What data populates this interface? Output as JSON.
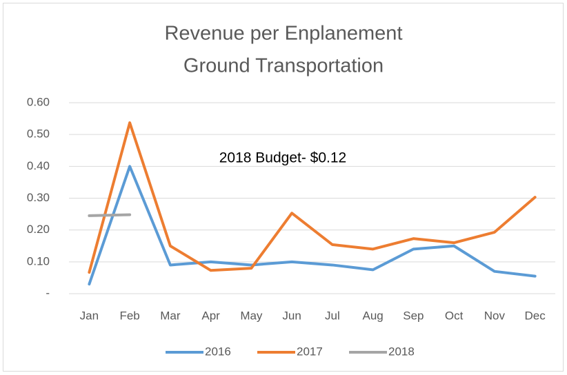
{
  "chart_data": {
    "type": "line",
    "title": [
      "Revenue per Enplanement",
      "Ground Transportation"
    ],
    "annotation": "2018 Budget- $0.12",
    "categories": [
      "Jan",
      "Feb",
      "Mar",
      "Apr",
      "May",
      "Jun",
      "Jul",
      "Aug",
      "Sep",
      "Oct",
      "Nov",
      "Dec"
    ],
    "series": [
      {
        "name": "2016",
        "color": "#5b9bd5",
        "values": [
          0.03,
          0.4,
          0.09,
          0.1,
          0.09,
          0.1,
          0.09,
          0.075,
          0.14,
          0.15,
          0.07,
          0.055
        ]
      },
      {
        "name": "2017",
        "color": "#ed7d31",
        "values": [
          0.067,
          0.537,
          0.15,
          0.073,
          0.08,
          0.253,
          0.154,
          0.14,
          0.173,
          0.16,
          0.193,
          0.303
        ]
      },
      {
        "name": "2018",
        "color": "#a5a5a5",
        "values": [
          0.245,
          0.248,
          null,
          null,
          null,
          null,
          null,
          null,
          null,
          null,
          null,
          null
        ]
      }
    ],
    "ylim": [
      0,
      0.6
    ],
    "yticks": [
      {
        "value": 0,
        "label": "-"
      },
      {
        "value": 0.1,
        "label": "0.10"
      },
      {
        "value": 0.2,
        "label": "0.20"
      },
      {
        "value": 0.3,
        "label": "0.30"
      },
      {
        "value": 0.4,
        "label": "0.40"
      },
      {
        "value": 0.5,
        "label": "0.50"
      },
      {
        "value": 0.6,
        "label": "0.60"
      }
    ],
    "grid": true,
    "legend": "bottom"
  }
}
